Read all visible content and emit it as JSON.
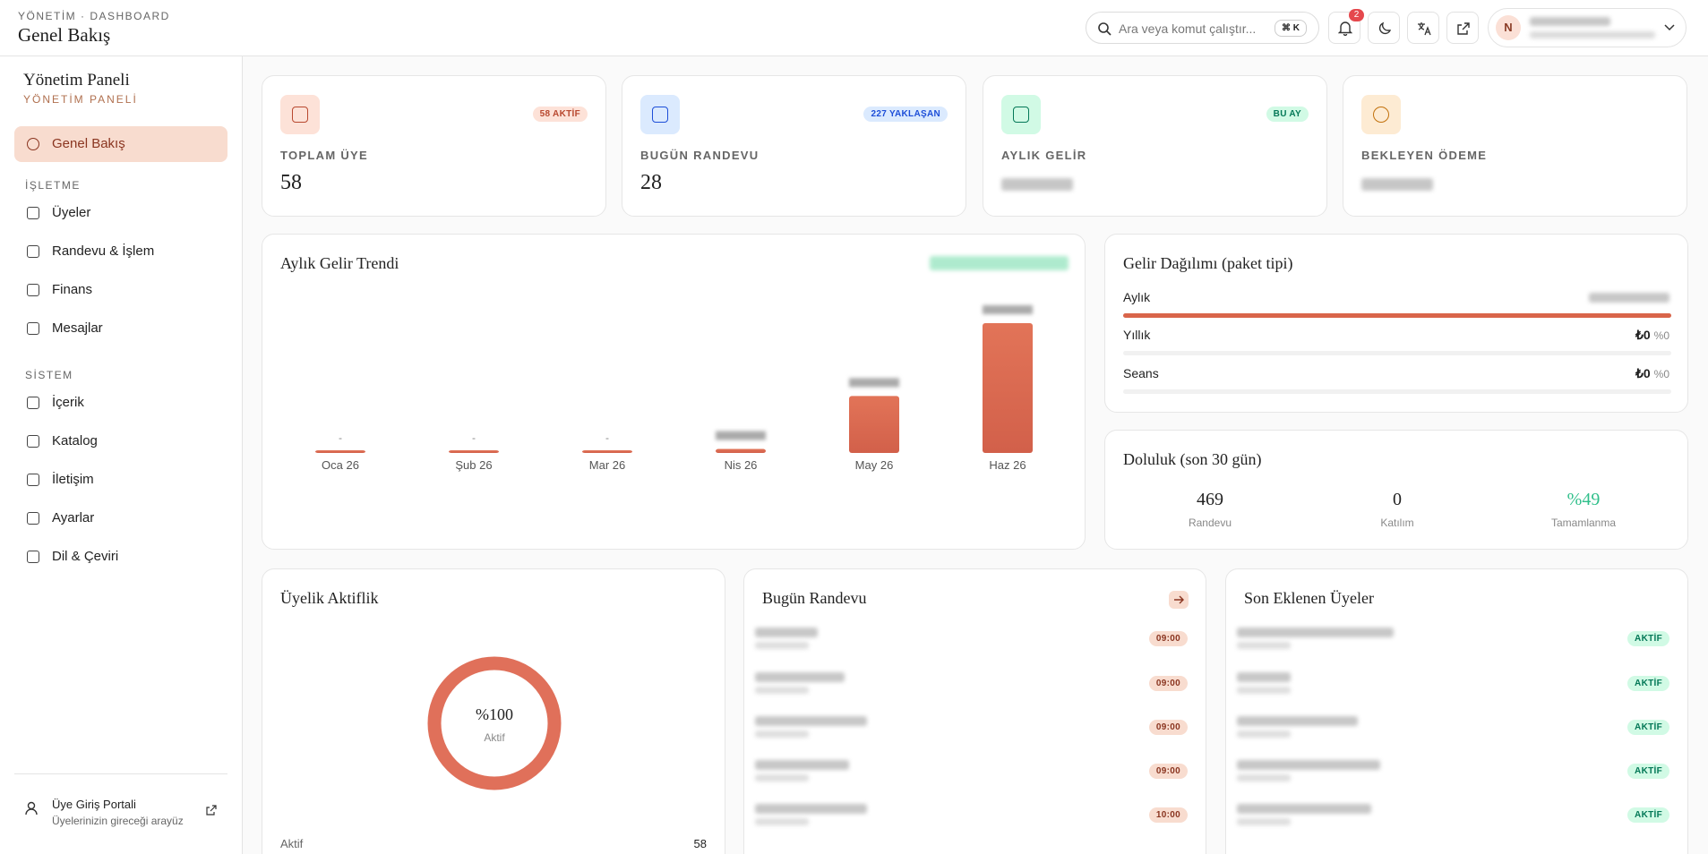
{
  "header": {
    "breadcrumb": "YÖNETİM · DASHBOARD",
    "title": "Genel Bakış",
    "search_placeholder": "Ara veya komut çalıştır...",
    "shortcut": "⌘ K",
    "notification_count": "2",
    "avatar_initial": "N"
  },
  "sidebar": {
    "title": "Yönetim Paneli",
    "subtitle": "YÖNETİM PANELİ",
    "active": "Genel Bakış",
    "sections": [
      {
        "label": "İŞLETME",
        "items": [
          "Üyeler",
          "Randevu & İşlem",
          "Finans",
          "Mesajlar"
        ]
      },
      {
        "label": "SİSTEM",
        "items": [
          "İçerik",
          "Katalog",
          "İletişim",
          "Ayarlar",
          "Dil & Çeviri"
        ]
      }
    ],
    "portal": {
      "title": "Üye Giriş Portali",
      "subtitle": "Üyelerinizin gireceği arayüz"
    }
  },
  "stats": [
    {
      "label": "TOPLAM ÜYE",
      "value": "58",
      "badge": "58 AKTİF"
    },
    {
      "label": "BUGÜN RANDEVU",
      "value": "28",
      "badge": "227 YAKLAŞAN"
    },
    {
      "label": "AYLIK GELİR",
      "badge": "BU AY"
    },
    {
      "label": "BEKLEYEN ÖDEME"
    }
  ],
  "chart_data": {
    "type": "bar",
    "title": "Aylık Gelir Trendi",
    "categories": [
      "Oca 26",
      "Şub 26",
      "Mar 26",
      "Nis 26",
      "May 26",
      "Haz 26"
    ],
    "values": [
      0,
      0,
      0,
      300,
      4300,
      9800
    ],
    "value_labels": [
      "-",
      "-",
      "-",
      null,
      null,
      null
    ],
    "color": "#d2604a"
  },
  "revenue_split": {
    "title": "Gelir Dağılımı (paket tipi)",
    "rows": [
      {
        "name": "Aylık",
        "share": 100
      },
      {
        "name": "Yıllık",
        "amount": "₺0",
        "share": 0,
        "share_label": "%0"
      },
      {
        "name": "Seans",
        "amount": "₺0",
        "share": 0,
        "share_label": "%0"
      }
    ]
  },
  "occupancy": {
    "title": "Doluluk (son 30 gün)",
    "stats": [
      {
        "value": "469",
        "label": "Randevu"
      },
      {
        "value": "0",
        "label": "Katılım"
      },
      {
        "value": "%49",
        "label": "Tamamlanma"
      }
    ]
  },
  "membership": {
    "title": "Üyelik Aktiflik",
    "donut": {
      "value": 100,
      "value_label": "%100",
      "label": "Aktif"
    },
    "rows": [
      {
        "label": "Aktif",
        "value": "58"
      }
    ]
  },
  "appointments": {
    "title": "Bugün Randevu",
    "times": [
      "09:00",
      "09:00",
      "09:00",
      "09:00",
      "10:00"
    ]
  },
  "recent_members": {
    "title": "Son Eklenen Üyeler",
    "statuses": [
      "AKTİF",
      "AKTİF",
      "AKTİF",
      "AKTİF",
      "AKTİF"
    ]
  }
}
